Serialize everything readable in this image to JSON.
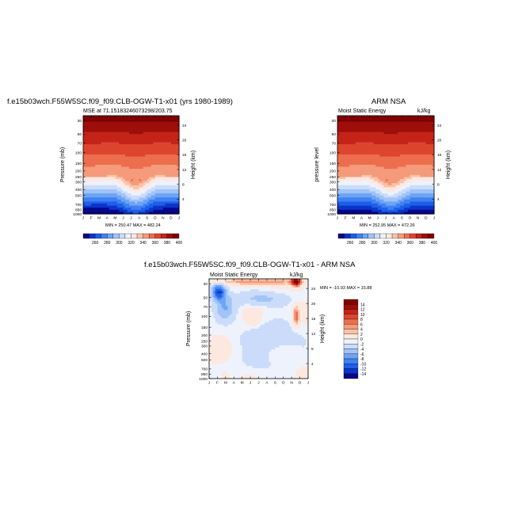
{
  "palette": [
    "#06078a",
    "#0a35c9",
    "#1f5fe8",
    "#3f82f2",
    "#6ea4f6",
    "#a0c4f8",
    "#cbdcfa",
    "#eef2fc",
    "#fde8e0",
    "#fbc2a8",
    "#f59a7a",
    "#ec6e4e",
    "#dd4530",
    "#c42418",
    "#9e0e0a",
    "#7f0000"
  ],
  "panels": [
    {
      "name": "model",
      "title": "f.e15b03wch.F55W5SC.f09_f09.CLB-OGW-T1-x01 (yrs 1980-1989)",
      "subtitle_left": "MSE at 71.15183246073298/203.75",
      "subtitle_right": "",
      "ylabel_left": "Pressure (mb)",
      "ylabel_right": "Height (km)",
      "minmax": "MIN = 250.47  MAX = 482.24"
    },
    {
      "name": "obs",
      "title": "ARM NSA",
      "subtitle_left": "Moist Static Energy",
      "subtitle_right": "kJ/kg",
      "ylabel_left": "pressure level",
      "ylabel_right": "Height (km)",
      "minmax": "MIN = 252.95  MAX = 472.26"
    },
    {
      "name": "diff",
      "title": "f.e15b03wch.F55W5SC.f09_f09.CLB-OGW-T1-x01 - ARM NSA",
      "subtitle_left": "Moist Static Energy",
      "subtitle_right": "kJ/kg",
      "ylabel_left": "Pressure (mb)",
      "ylabel_right": "Height (km)",
      "minmax": "MIN = -10.93  MAX = 15.88"
    }
  ],
  "chart_data": [
    {
      "type": "heatmap",
      "panel": "model",
      "x_tick_labels": [
        "J",
        "F",
        "M",
        "A",
        "M",
        "J",
        "J",
        "A",
        "S",
        "O",
        "N",
        "D",
        "J"
      ],
      "y_tick_labels_left": [
        "30",
        "50",
        "70",
        "100",
        "150",
        "200",
        "250",
        "300",
        "400",
        "500",
        "700",
        "850",
        "1000"
      ],
      "y_tick_labels_right": [
        "24",
        "20",
        "16",
        "12",
        "8",
        "4"
      ],
      "contour_levels": [
        260,
        270,
        280,
        290,
        300,
        310,
        320,
        330,
        340,
        350,
        360,
        370,
        380,
        390,
        400
      ],
      "colorbar_labels": [
        "260",
        "280",
        "300",
        "320",
        "340",
        "360",
        "380",
        "400"
      ],
      "min": 250.47,
      "max": 482.24
    },
    {
      "type": "heatmap",
      "panel": "obs",
      "x_tick_labels": [
        "J",
        "F",
        "M",
        "A",
        "M",
        "J",
        "J",
        "A",
        "S",
        "O",
        "N",
        "D",
        "J"
      ],
      "y_tick_labels_left": [
        "30",
        "50",
        "70",
        "100",
        "150",
        "200",
        "250",
        "300",
        "400",
        "500",
        "700",
        "850",
        "1000"
      ],
      "y_tick_labels_right": [
        "24",
        "20",
        "16",
        "12",
        "8",
        "4"
      ],
      "contour_levels": [
        260,
        270,
        280,
        290,
        300,
        310,
        320,
        330,
        340,
        350,
        360,
        370,
        380,
        390,
        400
      ],
      "colorbar_labels": [
        "260",
        "280",
        "300",
        "320",
        "340",
        "360",
        "380",
        "400"
      ],
      "min": 252.95,
      "max": 472.26
    },
    {
      "type": "heatmap",
      "panel": "diff",
      "x_tick_labels": [
        "J",
        "F",
        "M",
        "A",
        "M",
        "J",
        "J",
        "A",
        "S",
        "O",
        "N",
        "D",
        "J"
      ],
      "y_tick_labels_left": [
        "30",
        "50",
        "70",
        "100",
        "150",
        "200",
        "250",
        "300",
        "400",
        "500",
        "700",
        "850",
        "1000"
      ],
      "y_tick_labels_right": [
        "24",
        "20",
        "16",
        "12",
        "8",
        "4"
      ],
      "contour_levels": [
        -14,
        -12,
        -10,
        -8,
        -6,
        -4,
        -2,
        0,
        2,
        4,
        6,
        8,
        10,
        12,
        14
      ],
      "colorbar_labels": [
        "14",
        "12",
        "10",
        "8",
        "6",
        "4",
        "2",
        "0",
        "-2",
        "-4",
        "-6",
        "-8",
        "-10",
        "-12",
        "-14"
      ],
      "min": -10.93,
      "max": 15.88
    }
  ]
}
